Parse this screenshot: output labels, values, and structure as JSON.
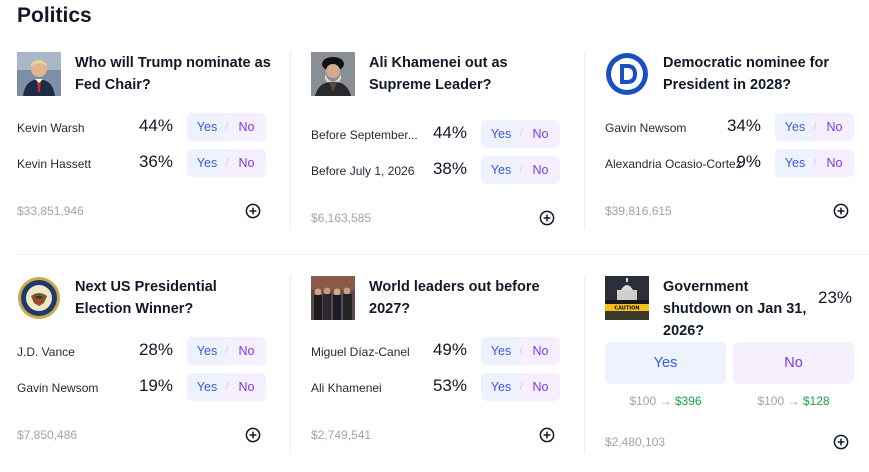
{
  "section": {
    "title": "Politics"
  },
  "colors": {
    "yes": "#3b5bdb",
    "no": "#7c3aed",
    "yes_bg": "#eef2ff",
    "no_bg": "#f6effd",
    "payout_gain": "#16a34a"
  },
  "cards": [
    {
      "thumb_icon": "trump-portrait-icon",
      "title": "Who will Trump nominate as Fed Chair?",
      "outcomes": [
        {
          "name": "Kevin Warsh",
          "pct": "44%",
          "yes": "Yes",
          "no": "No"
        },
        {
          "name": "Kevin Hassett",
          "pct": "36%",
          "yes": "Yes",
          "no": "No"
        }
      ],
      "volume": "$33,851,946"
    },
    {
      "thumb_icon": "khamenei-portrait-icon",
      "title": "Ali Khamenei out as Supreme Leader?",
      "outcomes": [
        {
          "name": "Before September...",
          "pct": "44%",
          "yes": "Yes",
          "no": "No"
        },
        {
          "name": "Before July 1, 2026",
          "pct": "38%",
          "yes": "Yes",
          "no": "No"
        }
      ],
      "volume": "$6,163,585"
    },
    {
      "thumb_icon": "democratic-logo-icon",
      "title": "Democratic nominee for President in 2028?",
      "outcomes": [
        {
          "name": "Gavin Newsom",
          "pct": "34%",
          "yes": "Yes",
          "no": "No"
        },
        {
          "name": "Alexandria Ocasio-Cortez",
          "pct": "9%",
          "yes": "Yes",
          "no": "No"
        }
      ],
      "volume": "$39,816,615"
    },
    {
      "thumb_icon": "presidential-seal-icon",
      "title": "Next US Presidential Election Winner?",
      "outcomes": [
        {
          "name": "J.D. Vance",
          "pct": "28%",
          "yes": "Yes",
          "no": "No"
        },
        {
          "name": "Gavin Newsom",
          "pct": "19%",
          "yes": "Yes",
          "no": "No"
        }
      ],
      "volume": "$7,850,486"
    },
    {
      "thumb_icon": "world-leaders-photo-icon",
      "title": "World leaders out before 2027?",
      "outcomes": [
        {
          "name": "Miguel Díaz-Canel",
          "pct": "49%",
          "yes": "Yes",
          "no": "No"
        },
        {
          "name": "Ali Khamenei",
          "pct": "53%",
          "yes": "Yes",
          "no": "No"
        }
      ],
      "volume": "$2,749,541"
    },
    {
      "thumb_icon": "capitol-caution-icon",
      "title": "Government shutdown on Jan 31, 2026?",
      "pct": "23%",
      "yes": "Yes",
      "no": "No",
      "yes_payout": {
        "stake": "$100",
        "arrow": "→",
        "win": "$396"
      },
      "no_payout": {
        "stake": "$100",
        "arrow": "→",
        "win": "$128"
      },
      "volume": "$2,480,103"
    }
  ]
}
